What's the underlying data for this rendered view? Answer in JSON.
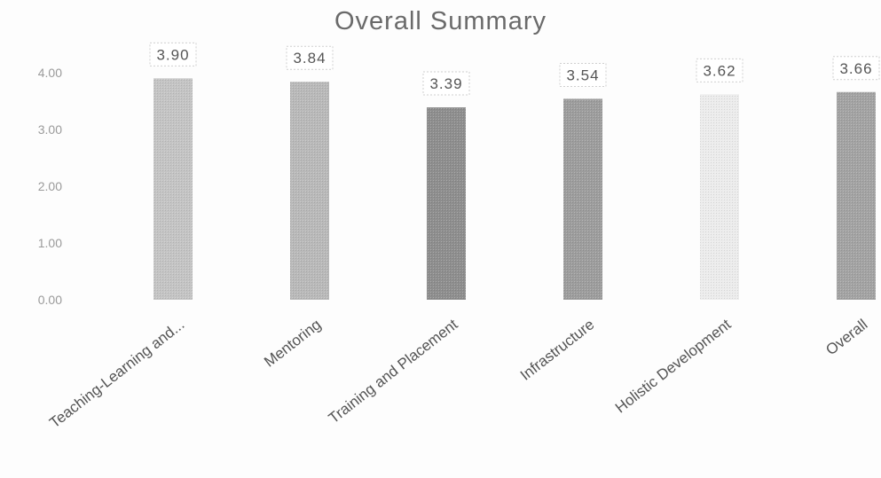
{
  "chart_data": {
    "type": "bar",
    "title": "Overall Summary",
    "categories": [
      "Teaching-Learning and...",
      "Mentoring",
      "Training and Placement",
      "Infrastructure",
      "Holistic Development",
      "Overall"
    ],
    "values": [
      3.9,
      3.84,
      3.39,
      3.54,
      3.62,
      3.66
    ],
    "value_labels": [
      "3.90",
      "3.84",
      "3.39",
      "3.54",
      "3.62",
      "3.66"
    ],
    "y_ticks": [
      "0.00",
      "1.00",
      "2.00",
      "3.00",
      "4.00"
    ],
    "y_tick_values": [
      0,
      1,
      2,
      3,
      4
    ],
    "ylim": [
      0,
      4
    ],
    "xlabel": "",
    "ylabel": "",
    "grid": false,
    "legend": "none",
    "bar_colors": [
      "#c4c4c4",
      "#b9b9b9",
      "#8e8e8e",
      "#9d9d9d",
      "#ececec",
      "#a3a3a3"
    ]
  }
}
